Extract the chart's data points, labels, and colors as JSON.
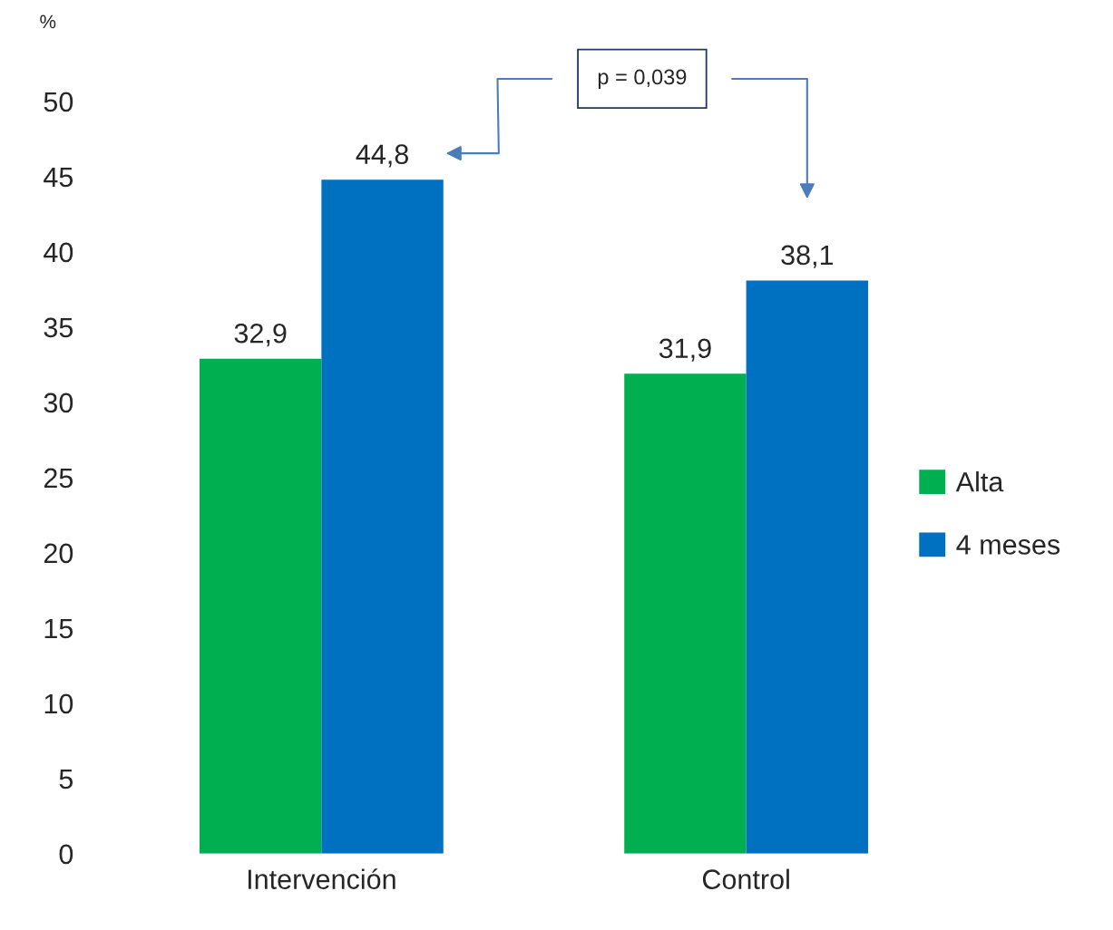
{
  "chart_data": {
    "type": "bar",
    "ylabel": "%",
    "categories": [
      "Intervención",
      "Control"
    ],
    "series": [
      {
        "name": "Alta",
        "color": "#00b050",
        "values": [
          32.9,
          31.9
        ],
        "value_labels": [
          "32,9",
          "31,9"
        ]
      },
      {
        "name": "4 meses",
        "color": "#0070c0",
        "values": [
          44.8,
          38.1
        ],
        "value_labels": [
          "44,8",
          "38,1"
        ]
      }
    ],
    "ylim": [
      0,
      50
    ],
    "yticks": [
      0,
      5,
      10,
      15,
      20,
      25,
      30,
      35,
      40,
      45,
      50
    ],
    "annotations": [
      "p = 0,039"
    ],
    "grid": false,
    "legend": "right"
  }
}
